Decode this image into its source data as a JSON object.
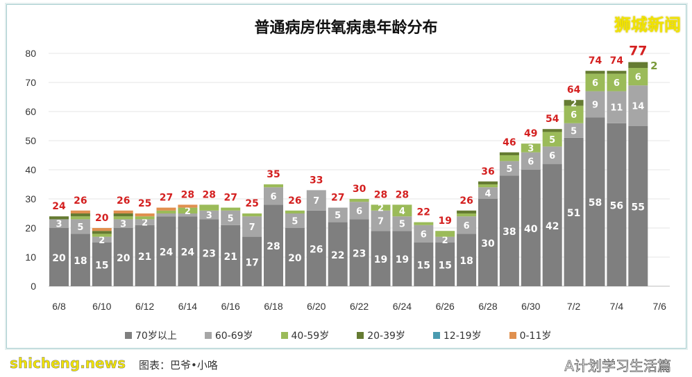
{
  "chart_data": {
    "type": "bar",
    "stacked": true,
    "title": "普通病房供氧病患年龄分布",
    "xlabel": "",
    "ylabel": "",
    "ylim": [
      0,
      80
    ],
    "yticks": [
      0,
      10,
      20,
      30,
      40,
      50,
      60,
      70,
      80
    ],
    "grid": true,
    "legend_position": "bottom",
    "categories": [
      "6/8",
      "6/9",
      "6/10",
      "6/11",
      "6/12",
      "6/13",
      "6/14",
      "6/15",
      "6/16",
      "6/17",
      "6/18",
      "6/19",
      "6/20",
      "6/21",
      "6/22",
      "6/23",
      "6/24",
      "6/25",
      "6/26",
      "6/27",
      "6/28",
      "6/29",
      "6/30",
      "7/1",
      "7/2",
      "7/3",
      "7/4",
      "7/5"
    ],
    "xtick_labels": [
      "6/8",
      "6/10",
      "6/12",
      "6/14",
      "6/16",
      "6/18",
      "6/20",
      "6/22",
      "6/24",
      "6/26",
      "6/28",
      "6/30",
      "7/2",
      "7/4",
      "7/6"
    ],
    "series": [
      {
        "name": "70岁以上",
        "color": "#7f7f7f",
        "values": [
          20,
          18,
          15,
          20,
          21,
          24,
          24,
          23,
          21,
          17,
          28,
          20,
          26,
          22,
          23,
          19,
          19,
          15,
          15,
          18,
          30,
          38,
          40,
          42,
          51,
          58,
          56,
          55
        ]
      },
      {
        "name": "60-69岁",
        "color": "#a6a6a6",
        "values": [
          3,
          5,
          2,
          3,
          2,
          1,
          1,
          3,
          5,
          7,
          6,
          5,
          7,
          5,
          6,
          7,
          5,
          6,
          2,
          6,
          4,
          5,
          6,
          6,
          5,
          9,
          11,
          14
        ]
      },
      {
        "name": "40-59岁",
        "color": "#9bbb59",
        "values": [
          0,
          1,
          1,
          1,
          1,
          1,
          2,
          2,
          1,
          1,
          1,
          1,
          0,
          0,
          1,
          2,
          4,
          1,
          2,
          1,
          1,
          2,
          3,
          5,
          6,
          6,
          6,
          6
        ]
      },
      {
        "name": "20-39岁",
        "color": "#657b32",
        "values": [
          1,
          1,
          1,
          1,
          0,
          0,
          0,
          0,
          0,
          0,
          0,
          0,
          0,
          0,
          0,
          0,
          0,
          0,
          0,
          1,
          1,
          1,
          0,
          1,
          2,
          1,
          1,
          2
        ]
      },
      {
        "name": "12-19岁",
        "color": "#4a9bb0",
        "values": [
          0,
          0,
          0,
          0,
          0,
          0,
          0,
          0,
          0,
          0,
          0,
          0,
          0,
          0,
          0,
          0,
          0,
          0,
          0,
          0,
          0,
          0,
          0,
          0,
          0,
          0,
          0,
          0
        ]
      },
      {
        "name": "0-11岁",
        "color": "#e0904f",
        "values": [
          0,
          1,
          1,
          1,
          1,
          1,
          1,
          0,
          0,
          0,
          0,
          0,
          0,
          0,
          0,
          0,
          0,
          0,
          0,
          0,
          0,
          0,
          0,
          0,
          0,
          0,
          0,
          0
        ]
      }
    ],
    "totals": [
      24,
      26,
      20,
      26,
      25,
      27,
      28,
      28,
      27,
      25,
      35,
      26,
      33,
      27,
      30,
      28,
      28,
      22,
      19,
      26,
      36,
      46,
      49,
      54,
      64,
      74,
      74,
      77
    ],
    "total_color": "#d42020"
  },
  "watermarks": {
    "top_right": "狮城新闻",
    "bottom_right": "A计划学习生活篇",
    "bottom_left": "shicheng.news",
    "credit": "图表：巴爷•小咯"
  }
}
